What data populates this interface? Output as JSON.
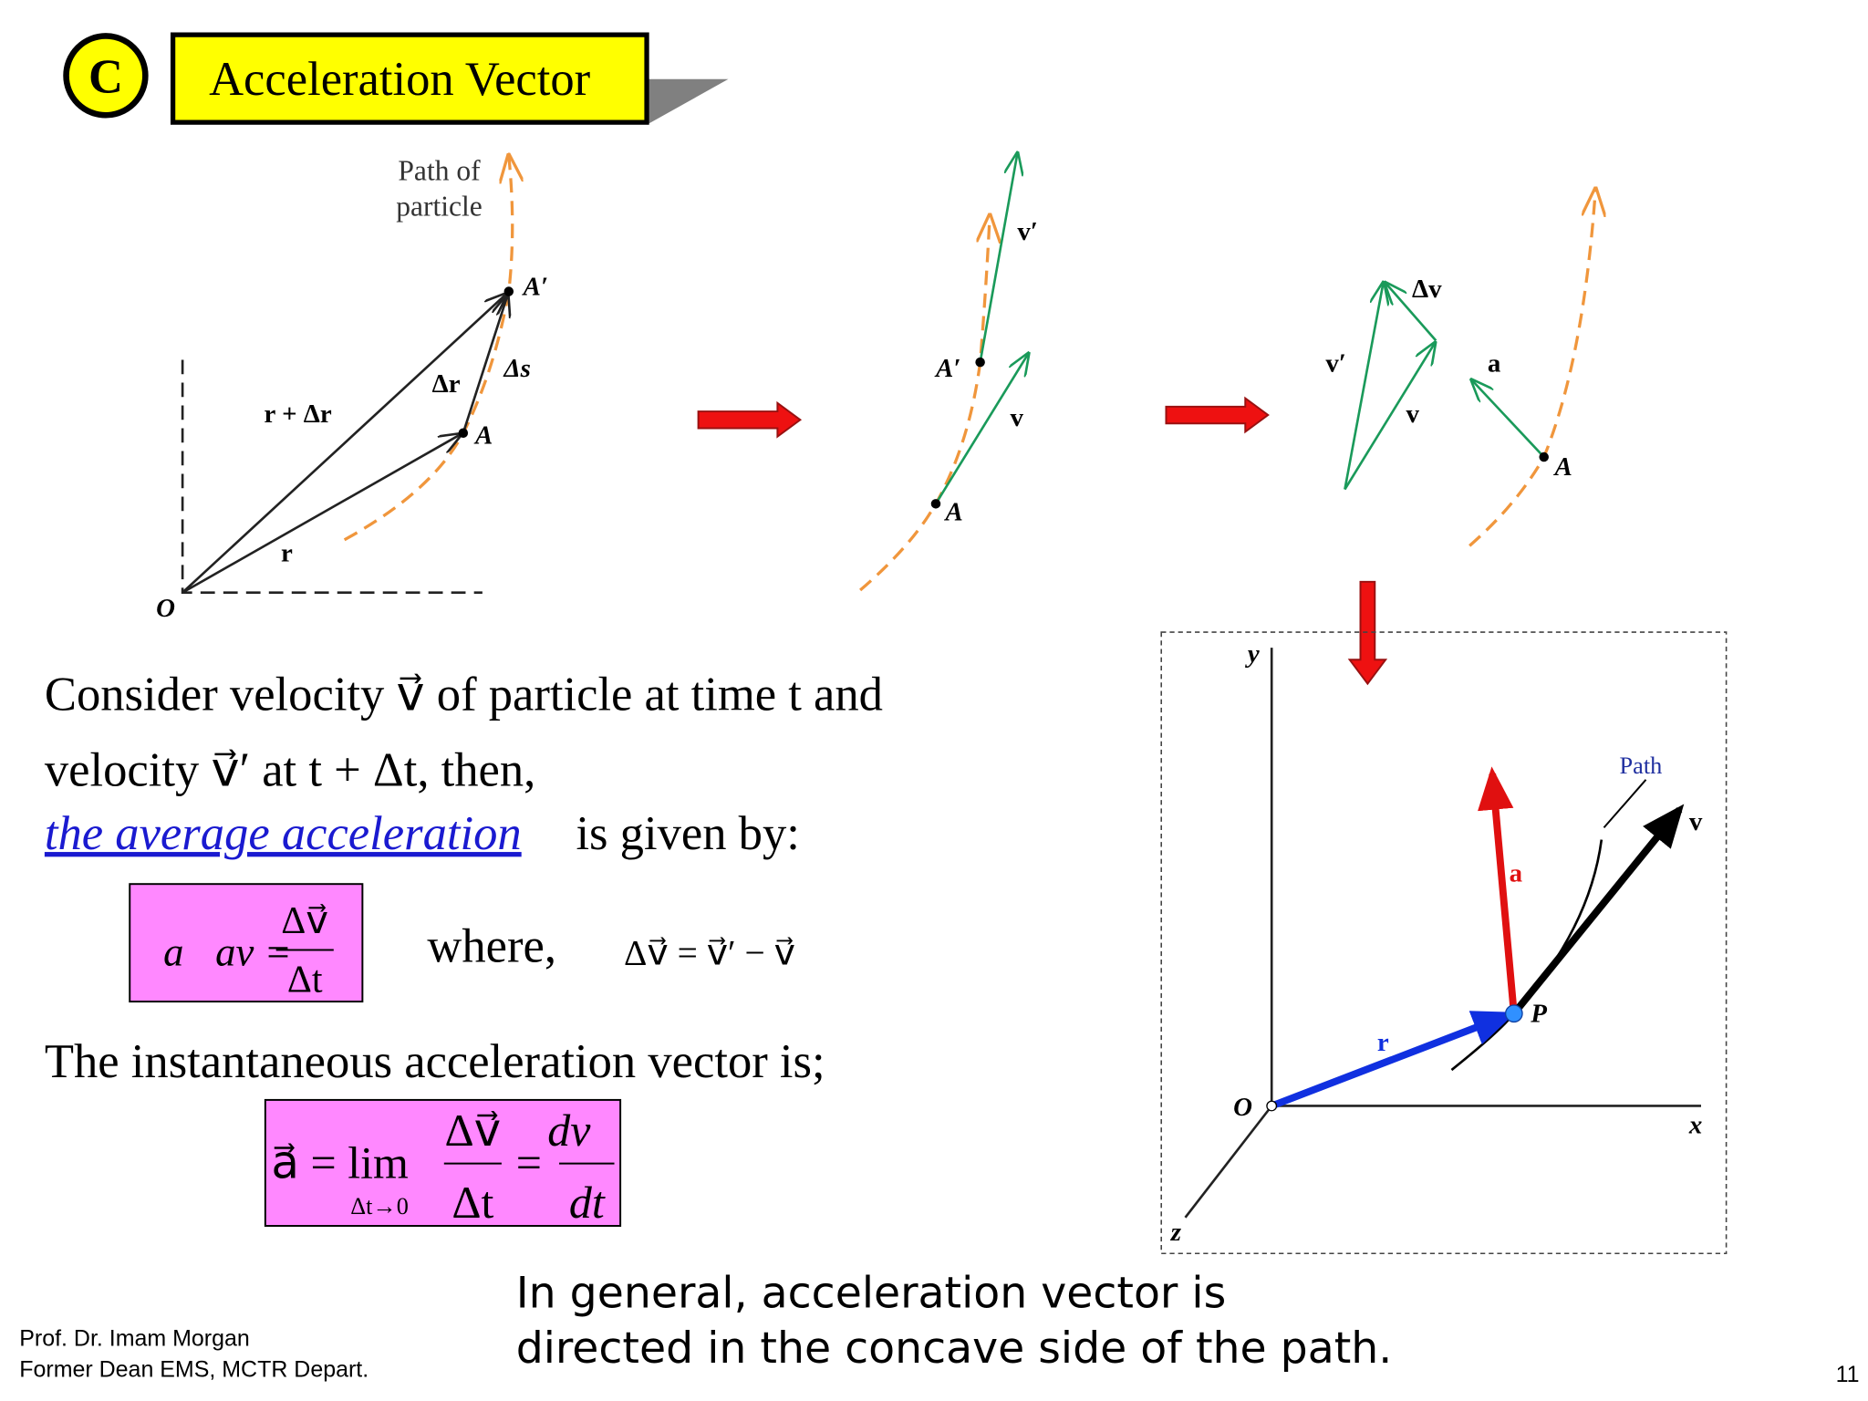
{
  "header": {
    "badge": "C",
    "title": "Acceleration Vector"
  },
  "figure1": {
    "path_label_1": "Path of",
    "path_label_2": "particle",
    "A_prime": "A′",
    "delta_s": "Δs",
    "delta_r": "Δr",
    "r_plus_delta_r": "r + Δr",
    "A": "A",
    "r": "r",
    "O": "O"
  },
  "figure2": {
    "v_prime": "v′",
    "A_prime": "A′",
    "v": "v",
    "A": "A"
  },
  "figure3": {
    "delta_v": "Δv",
    "v_prime": "v′",
    "v": "v",
    "a": "a",
    "A": "A"
  },
  "figure4": {
    "y": "y",
    "path": "Path",
    "v": "v",
    "a": "a",
    "P": "P",
    "r": "r",
    "O": "O",
    "x": "x",
    "z": "z"
  },
  "body": {
    "line1": "Consider velocity v⃗ of particle at time t and",
    "line2": "velocity v⃗′  at t + Δt, then,",
    "line3_link": "the average acceleration ",
    "line3_rest": "is given by:",
    "formula1": {
      "lhs": "a⃗av =",
      "num": "Δv⃗",
      "den": "Δt"
    },
    "where": "where,",
    "formula2": "Δv⃗ = v⃗′ − v⃗",
    "line4": "The instantaneous acceleration vector is;",
    "formula3": {
      "lhs": "a⃗ = lim",
      "sub": "Δt→0",
      "num1": "Δv⃗",
      "den1": "Δt",
      "eq": "=",
      "num2": "dv⃗",
      "den2": "dt"
    }
  },
  "note": {
    "line1": "In general, acceleration vector is",
    "line2": "directed in the concave side of the path."
  },
  "footer": {
    "author": "Prof. Dr. Imam Morgan",
    "position": "Former Dean EMS, MCTR Depart.",
    "page": 11
  }
}
